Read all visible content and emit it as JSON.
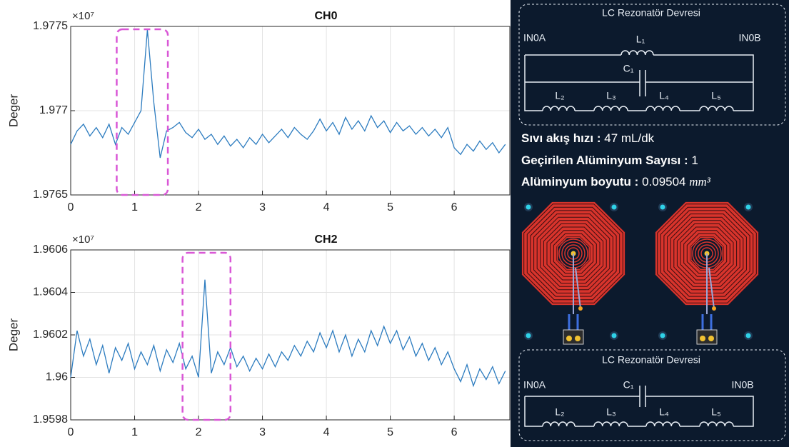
{
  "chart_data": [
    {
      "type": "line",
      "title": "CH0",
      "y_label": "Deger",
      "y_multiplier": "×10⁷",
      "xlim": [
        0,
        6.87
      ],
      "xticks": [
        0,
        1,
        2,
        3,
        4,
        5,
        6
      ],
      "ylim": [
        1.9765,
        1.9775
      ],
      "yticks": [
        1.9765,
        1.977,
        1.9775
      ],
      "grid": true,
      "highlight_x": [
        0.72,
        1.52
      ],
      "highlight_color": "#d957d6",
      "x": [
        0,
        0.1,
        0.2,
        0.3,
        0.4,
        0.5,
        0.6,
        0.7,
        0.8,
        0.9,
        1,
        1.1,
        1.2,
        1.3,
        1.4,
        1.5,
        1.6,
        1.7,
        1.8,
        1.9,
        2,
        2.1,
        2.2,
        2.3,
        2.4,
        2.5,
        2.6,
        2.7,
        2.8,
        2.9,
        3,
        3.1,
        3.2,
        3.3,
        3.4,
        3.5,
        3.6,
        3.7,
        3.8,
        3.9,
        4,
        4.1,
        4.2,
        4.3,
        4.4,
        4.5,
        4.6,
        4.7,
        4.8,
        4.9,
        5,
        5.1,
        5.2,
        5.3,
        5.4,
        5.5,
        5.6,
        5.7,
        5.8,
        5.9,
        6,
        6.1,
        6.2,
        6.3,
        6.4,
        6.5,
        6.6,
        6.7,
        6.8
      ],
      "series": [
        {
          "color": "#2b7bbf",
          "values": [
            1.9768,
            1.97688,
            1.97692,
            1.97685,
            1.9769,
            1.97684,
            1.97692,
            1.9768,
            1.9769,
            1.97686,
            1.97693,
            1.977,
            1.97748,
            1.97705,
            1.97672,
            1.97688,
            1.9769,
            1.97693,
            1.97687,
            1.97684,
            1.97689,
            1.97683,
            1.97686,
            1.9768,
            1.97685,
            1.97679,
            1.97683,
            1.97678,
            1.97684,
            1.9768,
            1.97686,
            1.97681,
            1.97685,
            1.97689,
            1.97684,
            1.9769,
            1.97686,
            1.97683,
            1.97688,
            1.97695,
            1.97688,
            1.97693,
            1.97686,
            1.97696,
            1.97689,
            1.97694,
            1.97688,
            1.97697,
            1.9769,
            1.97694,
            1.97687,
            1.97693,
            1.97688,
            1.97691,
            1.97686,
            1.9769,
            1.97685,
            1.97689,
            1.97684,
            1.9769,
            1.97678,
            1.97674,
            1.9768,
            1.97676,
            1.97682,
            1.97677,
            1.97681,
            1.97675,
            1.9768
          ]
        }
      ]
    },
    {
      "type": "line",
      "title": "CH2",
      "y_label": "Deger",
      "y_multiplier": "×10⁷",
      "xlim": [
        0,
        6.87
      ],
      "xticks": [
        0,
        1,
        2,
        3,
        4,
        5,
        6
      ],
      "ylim": [
        1.9598,
        1.9606
      ],
      "yticks": [
        1.9598,
        1.96,
        1.9602,
        1.9604,
        1.9606
      ],
      "grid": true,
      "highlight_x": [
        1.75,
        2.5
      ],
      "highlight_color": "#d957d6",
      "x": [
        0,
        0.1,
        0.2,
        0.3,
        0.4,
        0.5,
        0.6,
        0.7,
        0.8,
        0.9,
        1,
        1.1,
        1.2,
        1.3,
        1.4,
        1.5,
        1.6,
        1.7,
        1.8,
        1.9,
        2,
        2.1,
        2.2,
        2.3,
        2.4,
        2.5,
        2.6,
        2.7,
        2.8,
        2.9,
        3,
        3.1,
        3.2,
        3.3,
        3.4,
        3.5,
        3.6,
        3.7,
        3.8,
        3.9,
        4,
        4.1,
        4.2,
        4.3,
        4.4,
        4.5,
        4.6,
        4.7,
        4.8,
        4.9,
        5,
        5.1,
        5.2,
        5.3,
        5.4,
        5.5,
        5.6,
        5.7,
        5.8,
        5.9,
        6,
        6.1,
        6.2,
        6.3,
        6.4,
        6.5,
        6.6,
        6.7,
        6.8
      ],
      "series": [
        {
          "color": "#2b7bbf",
          "values": [
            1.96,
            1.96022,
            1.9601,
            1.96018,
            1.96006,
            1.96015,
            1.96002,
            1.96014,
            1.96008,
            1.96016,
            1.96004,
            1.96012,
            1.96006,
            1.96015,
            1.96003,
            1.96013,
            1.96007,
            1.96016,
            1.96004,
            1.9601,
            1.96,
            1.96046,
            1.96002,
            1.96012,
            1.96006,
            1.96014,
            1.96005,
            1.9601,
            1.96003,
            1.96009,
            1.96004,
            1.96011,
            1.96005,
            1.96012,
            1.96008,
            1.96015,
            1.9601,
            1.96017,
            1.96012,
            1.96021,
            1.96014,
            1.96022,
            1.96012,
            1.9602,
            1.9601,
            1.96018,
            1.96012,
            1.96022,
            1.96015,
            1.96024,
            1.96016,
            1.96022,
            1.96013,
            1.96019,
            1.9601,
            1.96016,
            1.96008,
            1.96014,
            1.96006,
            1.96012,
            1.96004,
            1.95998,
            1.96006,
            1.95996,
            1.96004,
            1.95999,
            1.96005,
            1.95997,
            1.96003
          ]
        }
      ]
    }
  ],
  "panel": {
    "top_circuit": {
      "title": "LC Rezonatör Devresi",
      "in_a": "IN0A",
      "in_b": "IN0B",
      "l1": "L₁",
      "c1": "C₁",
      "l2": "L₂",
      "l3": "L₃",
      "l4": "L₄",
      "l5": "L₅"
    },
    "info": [
      {
        "label": "Sıvı akış hızı :",
        "value": "47 mL/dk"
      },
      {
        "label": "Geçirilen Alüminyum Sayısı :",
        "value": "1"
      },
      {
        "label": "Alüminyum boyutu :",
        "value": "0.09504",
        "unit": "mm³"
      }
    ],
    "bottom_circuit": {
      "title": "LC Rezonatör Devresi",
      "in_a": "IN0A",
      "in_b": "IN0B",
      "c1": "C₁",
      "l2": "L₂",
      "l3": "L₃",
      "l4": "L₄",
      "l5": "L₅"
    }
  }
}
